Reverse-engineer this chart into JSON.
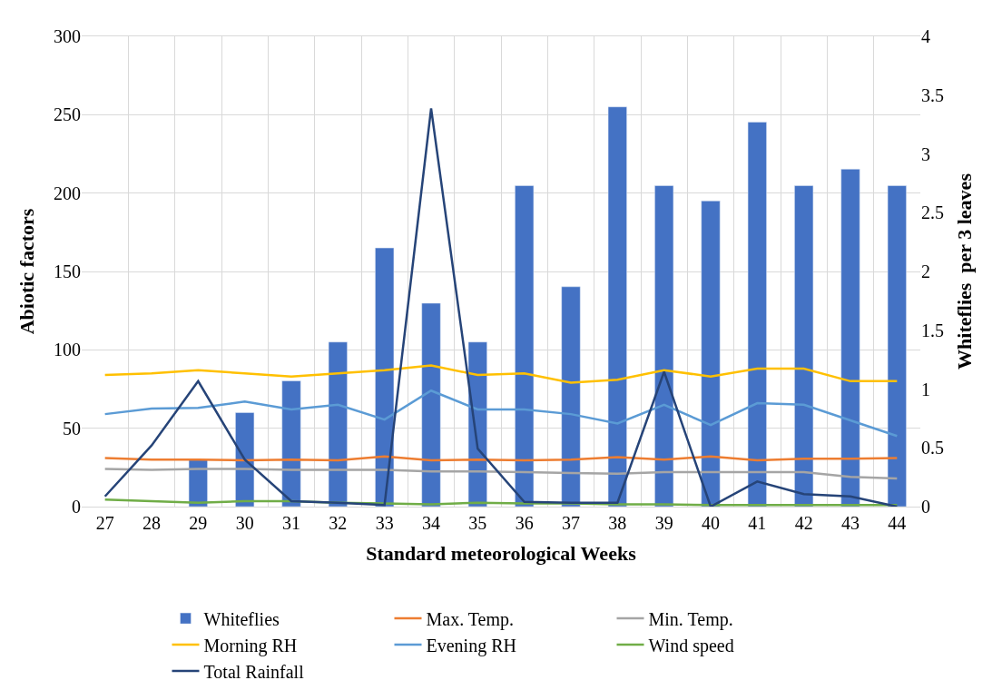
{
  "chart_data": {
    "type": "bar",
    "xlabel": "Standard meteorological Weeks",
    "ylabel": "Abiotic factors",
    "y2label": "Whiteflies  per 3 leaves",
    "categories": [
      "27",
      "28",
      "29",
      "30",
      "31",
      "32",
      "33",
      "34",
      "35",
      "36",
      "37",
      "38",
      "39",
      "40",
      "41",
      "42",
      "43",
      "44"
    ],
    "ylim": [
      0,
      300
    ],
    "yticks": [
      0,
      50,
      100,
      150,
      200,
      250,
      300
    ],
    "y2lim": [
      0,
      4
    ],
    "y2ticks": [
      0,
      0.5,
      1,
      1.5,
      2,
      2.5,
      3,
      3.5,
      4
    ],
    "grid": true,
    "legend": "bottom",
    "series": [
      {
        "name": "Whiteflies",
        "axis": "y2",
        "color": "#4472c4",
        "values": [
          null,
          null,
          0.4,
          0.8,
          1.07,
          1.4,
          2.2,
          1.73,
          1.4,
          2.73,
          1.87,
          3.4,
          2.73,
          2.6,
          3.27,
          2.73,
          2.87,
          2.73
        ]
      },
      {
        "name": "Max. Temp.",
        "type": "line",
        "color": "#ed7d31",
        "values": [
          31,
          30,
          30,
          29.5,
          30,
          29.5,
          32,
          29.5,
          30,
          29.5,
          30,
          31.5,
          30,
          32,
          29.5,
          30.5,
          30.5,
          31
        ]
      },
      {
        "name": "Min. Temp.",
        "type": "line",
        "color": "#a5a5a5",
        "values": [
          24,
          23.5,
          24,
          24,
          23.5,
          23.5,
          23.5,
          22.5,
          22.5,
          22,
          21.5,
          21,
          22,
          22,
          22,
          22,
          19,
          18
        ]
      },
      {
        "name": "Morning RH",
        "type": "line",
        "color": "#ffc000",
        "values": [
          84,
          85,
          87,
          85,
          83,
          85,
          87,
          90,
          84,
          85,
          79,
          81,
          87,
          83,
          88,
          88,
          80,
          80
        ]
      },
      {
        "name": "Evening RH",
        "type": "line",
        "color": "#5b9bd5",
        "values": [
          59,
          62.5,
          63,
          67,
          62,
          65,
          55.5,
          74,
          62,
          62,
          59,
          53,
          65,
          52,
          66,
          65,
          55,
          45
        ]
      },
      {
        "name": "Wind speed",
        "type": "line",
        "color": "#70ad47",
        "values": [
          4.5,
          3.5,
          2.5,
          3.5,
          3.5,
          2.5,
          2,
          1.5,
          2.5,
          2,
          2,
          1.5,
          1.5,
          1,
          1,
          1,
          1,
          1
        ]
      },
      {
        "name": "Total Rainfall",
        "type": "line",
        "color": "#264478",
        "values": [
          6.5,
          39,
          80,
          30,
          3.5,
          2.5,
          1,
          254,
          37,
          3,
          2.5,
          2.5,
          86,
          0,
          16,
          8,
          6.5,
          0
        ]
      }
    ]
  }
}
